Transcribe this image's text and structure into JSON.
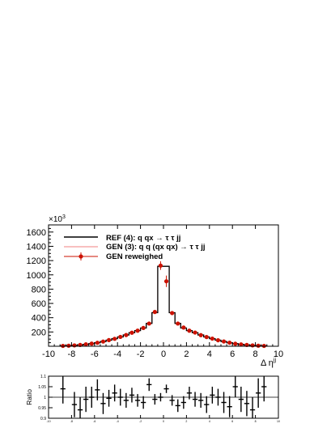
{
  "chart_data": [
    {
      "type": "line",
      "title": "",
      "xlabel": "Δ η",
      "xlabel_sup": "jj",
      "ylabel": "",
      "axis_multiplier": "×10",
      "axis_multiplier_exp": "3",
      "xlim": [
        -10,
        10
      ],
      "ylim": [
        0,
        1700
      ],
      "x_ticks": [
        -10,
        -8,
        -6,
        -4,
        -2,
        0,
        2,
        4,
        6,
        8,
        10
      ],
      "y_ticks": [
        200,
        400,
        600,
        800,
        1000,
        1200,
        1400,
        1600
      ],
      "legend_position": "top-left",
      "grid": false,
      "bin_edges": [
        -9,
        -8.5,
        -8,
        -7.5,
        -7,
        -6.5,
        -6,
        -5.5,
        -5,
        -4.5,
        -4,
        -3.5,
        -3,
        -2.5,
        -2,
        -1.5,
        -1,
        -0.5,
        0,
        0.5,
        1,
        1.5,
        2,
        2.5,
        3,
        3.5,
        4,
        4.5,
        5,
        5.5,
        6,
        6.5,
        7,
        7.5,
        8,
        8.5,
        9
      ],
      "series": [
        {
          "name": "REF (4): q qx → τ τ jj",
          "style": "hist",
          "color": "#000000",
          "values": [
            5,
            8,
            12,
            18,
            26,
            36,
            50,
            66,
            85,
            106,
            130,
            158,
            190,
            220,
            255,
            320,
            470,
            1120,
            1120,
            470,
            320,
            255,
            220,
            190,
            158,
            130,
            106,
            85,
            66,
            50,
            36,
            26,
            18,
            12,
            8,
            5
          ]
        },
        {
          "name": "GEN (3): q q (qx qx) → τ τ jj",
          "style": "hist",
          "color": "#f08080",
          "values": [
            5,
            8,
            12,
            18,
            26,
            36,
            50,
            66,
            85,
            106,
            130,
            158,
            190,
            220,
            255,
            320,
            470,
            1120,
            1120,
            470,
            320,
            255,
            220,
            190,
            158,
            130,
            106,
            85,
            66,
            50,
            36,
            26,
            18,
            12,
            8,
            5
          ]
        },
        {
          "name": "GEN reweighed",
          "style": "points",
          "color": "#cc1100",
          "x": [
            -8.75,
            -8.25,
            -7.75,
            -7.25,
            -6.75,
            -6.25,
            -5.75,
            -5.25,
            -4.75,
            -4.25,
            -3.75,
            -3.25,
            -2.75,
            -2.25,
            -1.75,
            -1.25,
            -0.75,
            -0.25,
            0.25,
            0.75,
            1.25,
            1.75,
            2.25,
            2.75,
            3.25,
            3.75,
            4.25,
            4.75,
            5.25,
            5.75,
            6.25,
            6.75,
            7.25,
            7.75,
            8.25,
            8.75
          ],
          "values": [
            5,
            8,
            12,
            18,
            27,
            37,
            49,
            66,
            86,
            104,
            131,
            157,
            190,
            218,
            256,
            318,
            480,
            1130,
            910,
            465,
            318,
            262,
            218,
            192,
            156,
            129,
            107,
            84,
            67,
            50,
            35,
            26,
            18,
            12,
            8,
            5
          ],
          "errors": [
            2,
            2,
            3,
            3,
            4,
            5,
            5,
            6,
            7,
            8,
            9,
            10,
            11,
            12,
            13,
            15,
            25,
            60,
            80,
            25,
            15,
            13,
            12,
            11,
            10,
            9,
            8,
            7,
            6,
            5,
            5,
            4,
            3,
            3,
            2,
            2
          ]
        }
      ]
    },
    {
      "type": "scatter",
      "title": "",
      "xlabel": "",
      "ylabel": "Ratio",
      "xlim": [
        -10,
        10
      ],
      "ylim": [
        0.9,
        1.1
      ],
      "y_ticks": [
        0.9,
        0.95,
        1,
        1.05,
        1.1
      ],
      "x_ticks": [
        -10,
        -8,
        -6,
        -4,
        -2,
        0,
        2,
        4,
        6,
        8,
        10
      ],
      "reference_line": 1.0,
      "series": [
        {
          "name": "",
          "color": "#000000",
          "x": [
            -8.75,
            -7.75,
            -7.25,
            -6.75,
            -6.25,
            -5.75,
            -5.25,
            -4.75,
            -4.25,
            -3.75,
            -3.25,
            -2.75,
            -2.25,
            -1.75,
            -1.25,
            -0.75,
            -0.25,
            0.25,
            0.75,
            1.25,
            1.75,
            2.25,
            2.75,
            3.25,
            3.75,
            4.25,
            4.75,
            5.25,
            5.75,
            6.25,
            6.75,
            7.25,
            7.75,
            8.25,
            8.75
          ],
          "values": [
            1.04,
            0.965,
            0.94,
            0.99,
            1.0,
            1.035,
            0.97,
            0.995,
            1.02,
            1.0,
            0.985,
            1.01,
            0.985,
            0.975,
            1.06,
            0.99,
            1.0,
            1.04,
            0.985,
            0.96,
            0.975,
            1.02,
            0.99,
            0.985,
            0.965,
            1.01,
            1.0,
            0.975,
            0.955,
            1.05,
            0.99,
            0.97,
            0.94,
            1.02,
            1.05
          ],
          "errors": [
            0.07,
            0.06,
            0.06,
            0.06,
            0.05,
            0.05,
            0.05,
            0.04,
            0.04,
            0.04,
            0.035,
            0.035,
            0.03,
            0.03,
            0.03,
            0.025,
            0.02,
            0.02,
            0.025,
            0.03,
            0.03,
            0.03,
            0.035,
            0.035,
            0.04,
            0.04,
            0.04,
            0.05,
            0.05,
            0.05,
            0.06,
            0.06,
            0.06,
            0.07,
            0.07
          ]
        }
      ]
    }
  ]
}
